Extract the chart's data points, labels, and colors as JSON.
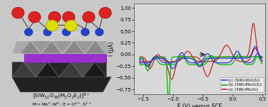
{
  "xlabel": "E (V) versus SCE",
  "ylabel": "I (μA)",
  "xlim": [
    -1.65,
    0.55
  ],
  "ylim": [
    -0.85,
    1.1
  ],
  "yticks": [
    -0.75,
    -0.5,
    -0.25,
    0.0,
    0.25,
    0.5,
    0.75,
    1.0
  ],
  "xticks": [
    -1.5,
    -1.0,
    -0.5,
    0.0,
    0.5
  ],
  "legend_labels": [
    "(c) {SiW₁₀W₂O₂S₂}",
    "(b) {SiW₁₀Mo₂O₂S₂}",
    "(a) {SiW₁₀Mo₂O₄}"
  ],
  "color_blue": "#3333dd",
  "color_green": "#00bb00",
  "color_red": "#cc2222",
  "fig_bg": "#c8c8c8",
  "plot_bg": "#d8d8d8"
}
